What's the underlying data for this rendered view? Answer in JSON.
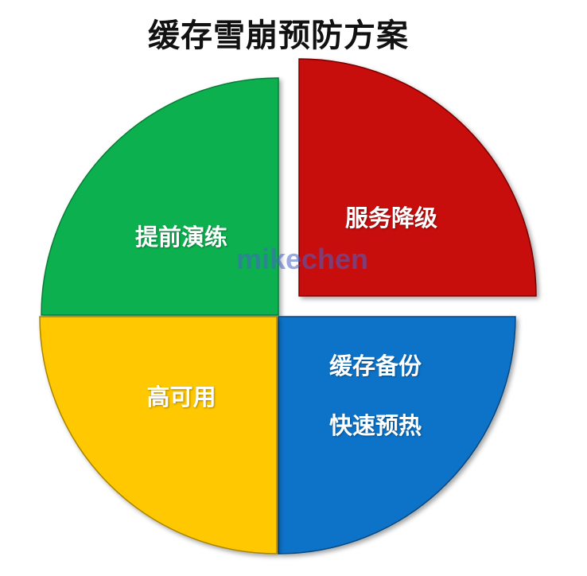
{
  "title": "缓存雪崩预防方案",
  "watermark": "mikechen",
  "segments": {
    "top_left": {
      "label": "提前演练",
      "color": "#0BB04F"
    },
    "top_right": {
      "label": "服务降级",
      "color": "#C80808"
    },
    "bottom_right": {
      "label_line1": "缓存备份",
      "label_line2": "快速预热",
      "color": "#0A73C8"
    },
    "bottom_left": {
      "label": "高可用",
      "color": "#FFC800"
    }
  }
}
